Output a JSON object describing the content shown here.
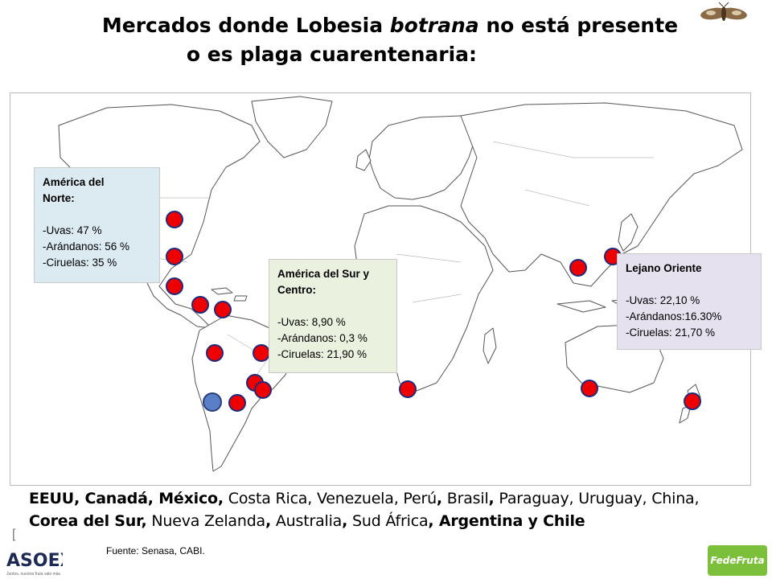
{
  "title": {
    "line1_a": "Mercados  donde Lobesia ",
    "line1_italic": "botrana",
    "line1_b": " no está presente",
    "line2": "o es  plaga cuarentenaria:"
  },
  "boxes": {
    "north_america": {
      "heading": "América del\nNorte:",
      "lines": [
        "-Uvas: 47 %",
        "-Arándanos: 56 %",
        "-Ciruelas: 35 %"
      ]
    },
    "south_america": {
      "heading": "América del Sur y\nCentro:",
      "lines": [
        "-Uvas: 8,90 %",
        "-Arándanos: 0,3 %",
        "-Ciruelas: 21,90 %"
      ]
    },
    "far_east": {
      "heading": "Lejano Oriente",
      "lines": [
        "-Uvas: 22,10 %",
        "-Arándanos:16.30%",
        "-Ciruelas: 21,70 %"
      ]
    }
  },
  "markets": {
    "s1": "EEUU, Canadá, México,",
    "s2": " Costa Rica, ",
    "s3": " Venezuela, Perú",
    "s4": ",",
    "s5": " Brasil",
    "s6": ",",
    "s7": " Paraguay,  Uruguay, China,",
    "s8": "Corea del Sur,",
    "s9": " Nueva Zelanda",
    "s10": ",",
    "s11": " Australia",
    "s12": ",",
    "s13": " Sud África",
    "s14": ", ",
    "s15": "Argentina y Chile"
  },
  "source": "Fuente:  Senasa, CABI.",
  "bracket": "[",
  "logos": {
    "left": "ASOEX",
    "left_sub": "Juntos, nuestra fruta vale más",
    "right": "FedeFruta"
  },
  "colors": {
    "marker": "#ee0000",
    "marker_chile": "#5a7fc8",
    "box_na": "#dcebf2",
    "box_sa": "#ebf1df",
    "box_fe": "#e6e1ef"
  },
  "icons": {
    "moth": "moth-icon"
  }
}
